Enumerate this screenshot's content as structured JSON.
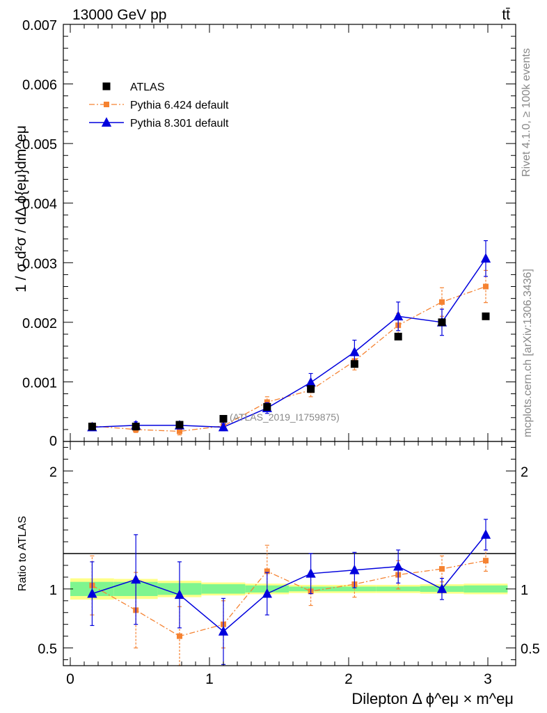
{
  "header": {
    "left_label": "13000 GeV pp",
    "right_label": "tt̄"
  },
  "side_labels": {
    "rivet": "Rivet 4.1.0, ≥ 100k events",
    "mcplots": "mcplots.cern.ch [arXiv:1306.3436]"
  },
  "colors": {
    "atlas": "#000000",
    "pythia6": "#f58231",
    "pythia8": "#0000dd",
    "band_inner": "#7ff58f",
    "band_outer": "#ffff88"
  },
  "chart_data": [
    {
      "type": "scatter",
      "title": "",
      "ylabel": "1 / σ d²σ / dΔ ϕ{eμ}dm^eμ",
      "xlabel": "Dilepton Δ ϕ^eμ × m^eμ",
      "xlim": [
        -0.05,
        3.2
      ],
      "ylim": [
        0,
        0.007
      ],
      "yticks": [
        "0.001",
        "0.002",
        "0.003",
        "0.004",
        "0.005",
        "0.006",
        "0.007"
      ],
      "y_zero_label": "0",
      "watermark": "(ATLAS_2019_I1759875)",
      "x": [
        0.157,
        0.471,
        0.785,
        1.1,
        1.414,
        1.728,
        2.042,
        2.356,
        2.67,
        2.985
      ],
      "series": [
        {
          "name": "ATLAS",
          "values": [
            0.00025,
            0.00025,
            0.00028,
            0.00038,
            0.00058,
            0.00088,
            0.0013,
            0.00176,
            0.002,
            0.0021
          ],
          "errors": [
            2e-05,
            2e-05,
            2e-05,
            2e-05,
            3e-05,
            4e-05,
            5e-05,
            5e-05,
            6e-05,
            6e-05
          ]
        },
        {
          "name": "Pythia 6.424 default",
          "values": [
            0.00026,
            0.0002,
            0.00017,
            0.00026,
            0.00066,
            0.00086,
            0.00135,
            0.00195,
            0.00234,
            0.0026
          ],
          "errors": [
            5e-05,
            5e-05,
            6e-05,
            6e-05,
            9e-05,
            0.00011,
            0.00015,
            0.0002,
            0.00024,
            0.00027
          ]
        },
        {
          "name": "Pythia 8.301 default",
          "values": [
            0.00024,
            0.00027,
            0.00027,
            0.00024,
            0.00056,
            0.00099,
            0.0015,
            0.0021,
            0.002,
            0.00307
          ],
          "errors": [
            5e-05,
            6e-05,
            6e-05,
            6e-05,
            9e-05,
            0.00015,
            0.0002,
            0.00024,
            0.00022,
            0.0003
          ]
        }
      ]
    },
    {
      "type": "scatter",
      "title": "",
      "ylabel": "Ratio to ATLAS",
      "xlabel": "Dilepton Δ ϕ^eμ × m^eμ",
      "xlim": [
        -0.05,
        3.2
      ],
      "ylim": [
        0.35,
        2.25
      ],
      "yticks": [
        "0.5",
        "1",
        "2"
      ],
      "xticks": [
        "0",
        "1",
        "2",
        "3"
      ],
      "x": [
        0.157,
        0.471,
        0.785,
        1.1,
        1.414,
        1.728,
        2.042,
        2.356,
        2.67,
        2.985
      ],
      "bin_edges": [
        0.0,
        0.314,
        0.628,
        0.942,
        1.257,
        1.571,
        1.885,
        2.199,
        2.513,
        2.827,
        3.142
      ],
      "band_inner": [
        0.06,
        0.06,
        0.05,
        0.04,
        0.03,
        0.02,
        0.02,
        0.02,
        0.025,
        0.03
      ],
      "band_outer": [
        0.09,
        0.085,
        0.07,
        0.055,
        0.045,
        0.035,
        0.035,
        0.035,
        0.04,
        0.045
      ],
      "series": [
        {
          "name": "Pythia 6.424 default",
          "values": [
            1.03,
            0.82,
            0.6,
            0.7,
            1.15,
            0.98,
            1.04,
            1.12,
            1.17,
            1.24
          ],
          "errors": [
            0.25,
            0.32,
            0.25,
            0.2,
            0.22,
            0.12,
            0.11,
            0.12,
            0.11,
            0.09
          ]
        },
        {
          "name": "Pythia 8.301 default",
          "values": [
            0.96,
            1.08,
            0.95,
            0.64,
            0.96,
            1.13,
            1.16,
            1.19,
            1.0,
            1.46
          ],
          "errors": [
            0.27,
            0.38,
            0.28,
            0.28,
            0.18,
            0.17,
            0.15,
            0.14,
            0.09,
            0.13
          ]
        }
      ]
    }
  ]
}
